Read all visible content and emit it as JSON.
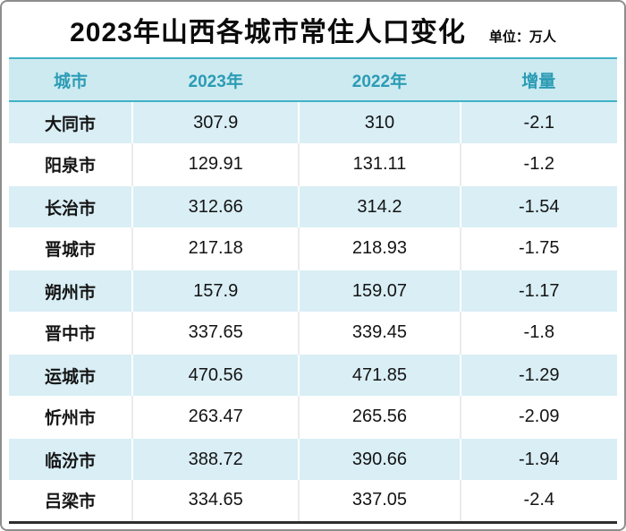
{
  "header": {
    "title": "2023年山西各城市常住人口变化",
    "unit": "单位：万人"
  },
  "table": {
    "columns": [
      "城市",
      "2023年",
      "2022年",
      "增量"
    ],
    "rows": [
      {
        "city": "大同市",
        "y2023": "307.9",
        "y2022": "310",
        "delta": "-2.1"
      },
      {
        "city": "阳泉市",
        "y2023": "129.91",
        "y2022": "131.11",
        "delta": "-1.2"
      },
      {
        "city": "长治市",
        "y2023": "312.66",
        "y2022": "314.2",
        "delta": "-1.54"
      },
      {
        "city": "晋城市",
        "y2023": "217.18",
        "y2022": "218.93",
        "delta": "-1.75"
      },
      {
        "city": "朔州市",
        "y2023": "157.9",
        "y2022": "159.07",
        "delta": "-1.17"
      },
      {
        "city": "晋中市",
        "y2023": "337.65",
        "y2022": "339.45",
        "delta": "-1.8"
      },
      {
        "city": "运城市",
        "y2023": "470.56",
        "y2022": "471.85",
        "delta": "-1.29"
      },
      {
        "city": "忻州市",
        "y2023": "263.47",
        "y2022": "265.56",
        "delta": "-2.09"
      },
      {
        "city": "临汾市",
        "y2023": "388.72",
        "y2022": "390.66",
        "delta": "-1.94"
      },
      {
        "city": "吕梁市",
        "y2023": "334.65",
        "y2022": "337.05",
        "delta": "-2.4"
      }
    ]
  },
  "colors": {
    "frame_border": "#8e8e8e",
    "header_bg": "#cdeaf1",
    "header_text": "#2b9cb4",
    "header_border": "#41b1c5",
    "row_alt_bg": "#d9eef5",
    "bottom_border": "#2e2e2e"
  },
  "chart_data": {
    "type": "table",
    "title": "2023年山西各城市常住人口变化",
    "unit": "万人",
    "columns": [
      "城市",
      "2023年",
      "2022年",
      "增量"
    ],
    "rows": [
      [
        "大同市",
        307.9,
        310,
        -2.1
      ],
      [
        "阳泉市",
        129.91,
        131.11,
        -1.2
      ],
      [
        "长治市",
        312.66,
        314.2,
        -1.54
      ],
      [
        "晋城市",
        217.18,
        218.93,
        -1.75
      ],
      [
        "朔州市",
        157.9,
        159.07,
        -1.17
      ],
      [
        "晋中市",
        337.65,
        339.45,
        -1.8
      ],
      [
        "运城市",
        470.56,
        471.85,
        -1.29
      ],
      [
        "忻州市",
        263.47,
        265.56,
        -2.09
      ],
      [
        "临汾市",
        388.72,
        390.66,
        -1.94
      ],
      [
        "吕梁市",
        334.65,
        337.05,
        -2.4
      ]
    ]
  }
}
